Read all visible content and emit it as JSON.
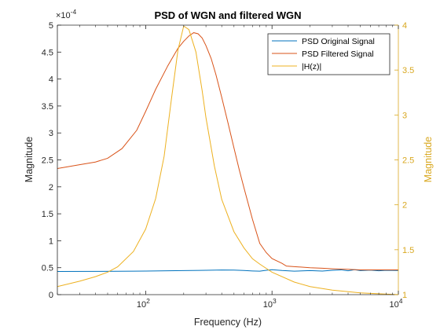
{
  "chart_data": {
    "type": "line",
    "title": "PSD of WGN and filtered WGN",
    "xlabel": "Frequency (Hz)",
    "ylabel_left": "Magnitude",
    "ylabel_right": "Magnitude",
    "x_scale": "log",
    "xlim": [
      20,
      10000
    ],
    "ylim_left": [
      0,
      0.0005
    ],
    "ylim_right": [
      1,
      4
    ],
    "y_left_exponent_label": "×10",
    "y_left_exponent_power": "-4",
    "x_ticks": [
      {
        "value": 100,
        "base": "10",
        "exp": "2"
      },
      {
        "value": 1000,
        "base": "10",
        "exp": "3"
      },
      {
        "value": 10000,
        "base": "10",
        "exp": "4"
      }
    ],
    "y_left_ticks": [
      {
        "value": 0,
        "label": "0"
      },
      {
        "value": 5e-05,
        "label": "0.5"
      },
      {
        "value": 0.0001,
        "label": "1"
      },
      {
        "value": 0.00015,
        "label": "1.5"
      },
      {
        "value": 0.0002,
        "label": "2"
      },
      {
        "value": 0.00025,
        "label": "2.5"
      },
      {
        "value": 0.0003,
        "label": "3"
      },
      {
        "value": 0.00035,
        "label": "3.5"
      },
      {
        "value": 0.0004,
        "label": "4"
      },
      {
        "value": 0.00045,
        "label": "4.5"
      },
      {
        "value": 0.0005,
        "label": "5"
      }
    ],
    "y_right_ticks": [
      {
        "value": 1,
        "label": "1"
      },
      {
        "value": 1.5,
        "label": "1.5"
      },
      {
        "value": 2,
        "label": "2"
      },
      {
        "value": 2.5,
        "label": "2.5"
      },
      {
        "value": 3,
        "label": "3"
      },
      {
        "value": 3.5,
        "label": "3.5"
      },
      {
        "value": 4,
        "label": "4"
      }
    ],
    "legend_position": "top-right",
    "grid": false,
    "series": [
      {
        "name": "PSD Original Signal",
        "axis": "left",
        "color": "#0072BD",
        "x": [
          20,
          40,
          60,
          80,
          100,
          150,
          200,
          300,
          400,
          500,
          600,
          700,
          800,
          900,
          1000,
          1200,
          1500,
          2000,
          2500,
          3000,
          3500,
          4000,
          4500,
          5000,
          6000,
          7000,
          8000,
          10000
        ],
        "y": [
          4.3e-05,
          4.32e-05,
          4.33e-05,
          4.35e-05,
          4.37e-05,
          4.42e-05,
          4.47e-05,
          4.52e-05,
          4.58e-05,
          4.55e-05,
          4.48e-05,
          4.4e-05,
          4.36e-05,
          4.52e-05,
          4.62e-05,
          4.48e-05,
          4.36e-05,
          4.46e-05,
          4.37e-05,
          4.52e-05,
          4.6e-05,
          4.42e-05,
          4.63e-05,
          4.47e-05,
          4.55e-05,
          4.42e-05,
          4.52e-05,
          4.48e-05
        ]
      },
      {
        "name": "PSD Filtered Signal",
        "axis": "left",
        "color": "#D95319",
        "x": [
          20,
          30,
          40,
          50,
          65,
          85,
          100,
          120,
          150,
          180,
          200,
          220,
          240,
          260,
          280,
          300,
          330,
          360,
          400,
          450,
          500,
          550,
          600,
          700,
          800,
          900,
          1000,
          1200,
          1300,
          1500,
          2000,
          2500,
          3000,
          4000,
          5000,
          7000,
          10000
        ],
        "y": [
          0.000234,
          0.000241,
          0.000246,
          0.000253,
          0.000271,
          0.000305,
          0.00034,
          0.000381,
          0.000425,
          0.000457,
          0.00047,
          0.00048,
          0.000486,
          0.000484,
          0.000476,
          0.000462,
          0.000438,
          0.000408,
          0.000366,
          0.000317,
          0.000272,
          0.000232,
          0.000198,
          0.00014,
          9.5e-05,
          7.8e-05,
          6.7e-05,
          5.8e-05,
          5.3e-05,
          5.2e-05,
          5e-05,
          4.9e-05,
          4.8e-05,
          4.7e-05,
          4.6e-05,
          4.6e-05,
          4.6e-05
        ]
      },
      {
        "name": "|H(z)|",
        "axis": "right",
        "color": "#EDB120",
        "x": [
          20,
          30,
          40,
          50,
          60,
          80,
          100,
          120,
          140,
          160,
          180,
          200,
          220,
          250,
          280,
          300,
          350,
          400,
          500,
          600,
          700,
          800,
          1000,
          1500,
          2000,
          3000,
          5000,
          7000,
          10000
        ],
        "y": [
          1.09,
          1.15,
          1.2,
          1.25,
          1.31,
          1.48,
          1.73,
          2.07,
          2.54,
          3.18,
          3.72,
          3.99,
          3.95,
          3.7,
          3.27,
          2.97,
          2.43,
          2.06,
          1.7,
          1.52,
          1.4,
          1.34,
          1.25,
          1.14,
          1.09,
          1.05,
          1.02,
          1.01,
          1.0
        ]
      }
    ]
  }
}
